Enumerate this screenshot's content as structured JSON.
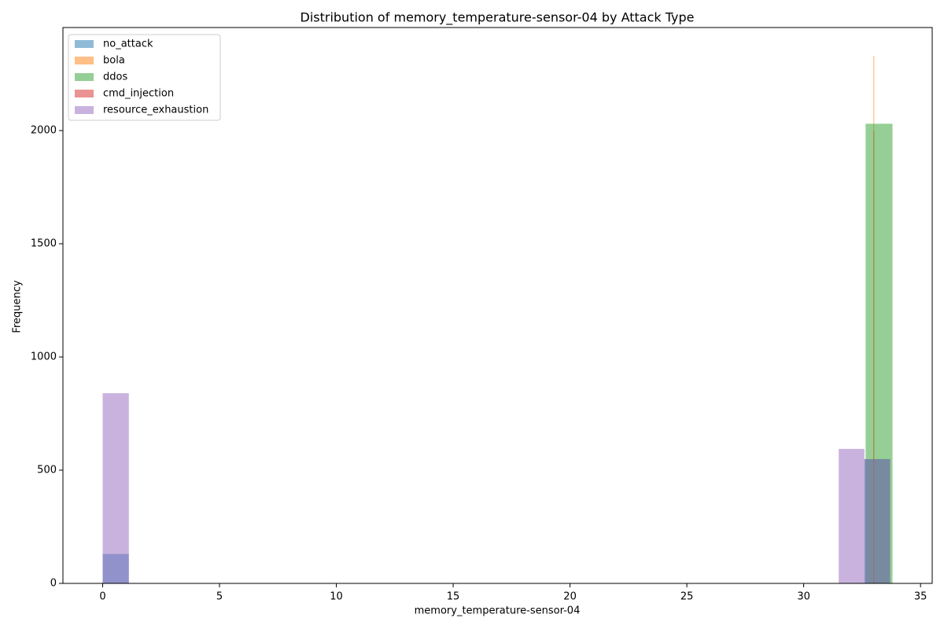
{
  "chart_data": {
    "type": "histogram",
    "title": "Distribution of memory_temperature-sensor-04 by Attack Type",
    "xlabel": "memory_temperature-sensor-04",
    "ylabel": "Frequency",
    "xlim": [
      -1.7,
      35.5
    ],
    "ylim": [
      0,
      2455
    ],
    "xticks": [
      0,
      5,
      10,
      15,
      20,
      25,
      30,
      35
    ],
    "yticks": [
      0,
      500,
      1000,
      1500,
      2000
    ],
    "legend": "upper-left",
    "opacity": 0.5,
    "series": [
      {
        "name": "no_attack",
        "color": "#1f77b4",
        "bins": [
          0,
          1.12,
          32.6,
          33.7
        ],
        "values": [
          130,
          0,
          549
        ]
      },
      {
        "name": "bola",
        "color": "#ff7f0e",
        "bins": [
          32.98,
          33.02
        ],
        "values": [
          2330
        ]
      },
      {
        "name": "ddos",
        "color": "#2ca02c",
        "bins": [
          32.65,
          33.8
        ],
        "values": [
          2030
        ]
      },
      {
        "name": "cmd_injection",
        "color": "#d62728",
        "bins": [
          32.99,
          33.01
        ],
        "values": [
          2000
        ]
      },
      {
        "name": "resource_exhaustion",
        "color": "#9467bd",
        "bins": [
          0,
          1.12,
          31.5,
          32.6,
          33.7
        ],
        "values": [
          840,
          0,
          594,
          549
        ]
      }
    ]
  }
}
